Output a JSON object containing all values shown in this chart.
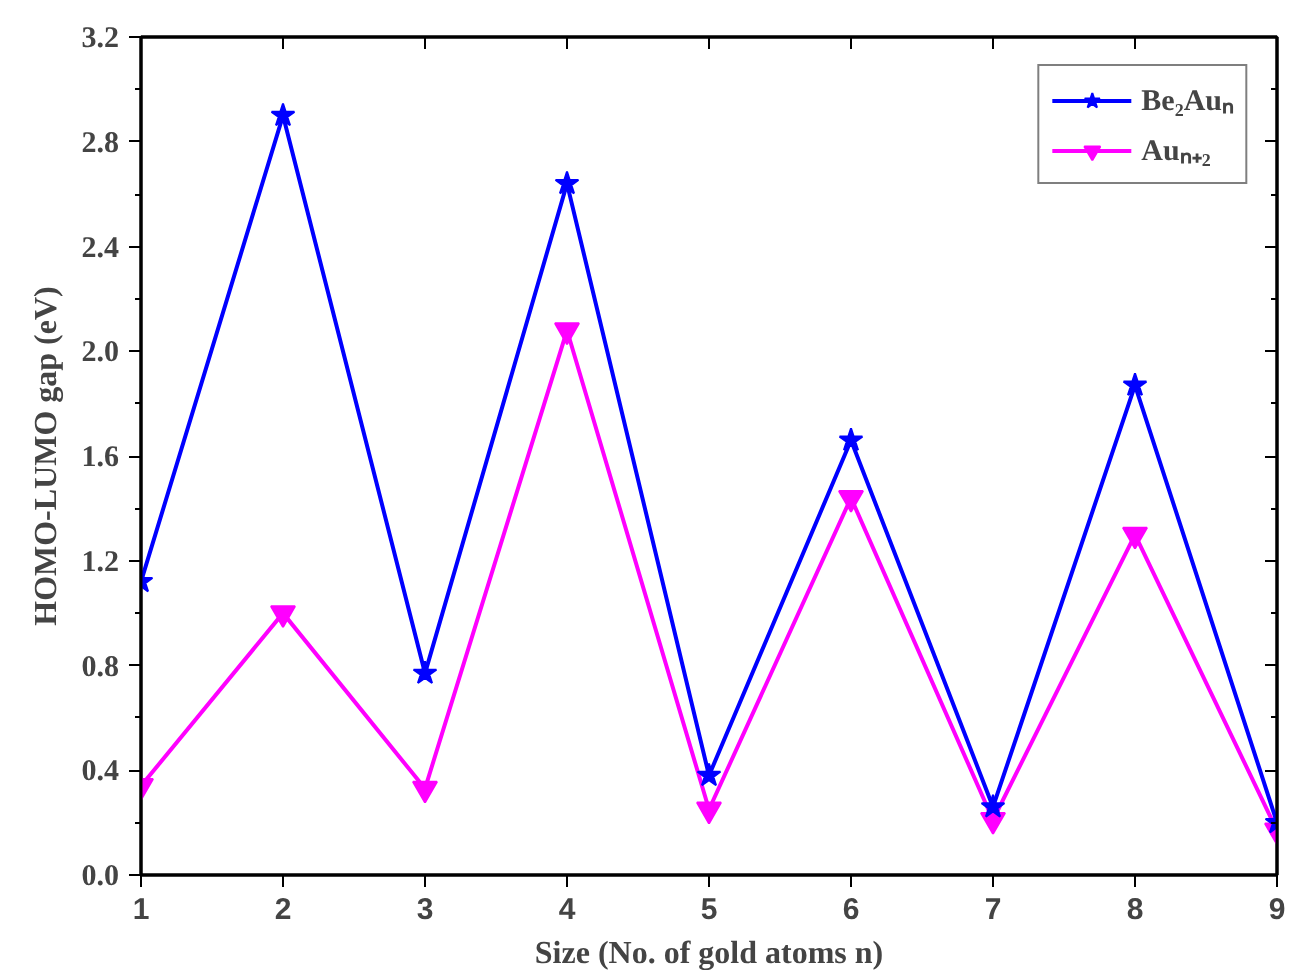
{
  "chart_data": {
    "type": "line",
    "xlabel": "Size (No. of gold atoms n)",
    "ylabel": "HOMO-LUMO gap (eV)",
    "x": [
      1,
      2,
      3,
      4,
      5,
      6,
      7,
      8,
      9
    ],
    "xlim": [
      1,
      9
    ],
    "xticks": [
      1,
      2,
      3,
      4,
      5,
      6,
      7,
      8,
      9
    ],
    "ylim": [
      0,
      3.2
    ],
    "yticks": [
      {
        "value": 0,
        "label": "0.0"
      },
      {
        "value": 0.4,
        "label": "0.4"
      },
      {
        "value": 0.8,
        "label": "0.8"
      },
      {
        "value": 1.2,
        "label": "1.2"
      },
      {
        "value": 1.6,
        "label": "1.6"
      },
      {
        "value": 2.0,
        "label": "2.0"
      },
      {
        "value": 2.4,
        "label": "2.4"
      },
      {
        "value": 2.8,
        "label": "2.8"
      },
      {
        "value": 3.2,
        "label": "3.2"
      }
    ],
    "series": [
      {
        "name": "Be₂Auₙ",
        "color": "#0000ff",
        "marker": "star",
        "values": [
          1.12,
          2.9,
          0.77,
          2.64,
          0.38,
          1.66,
          0.26,
          1.87,
          0.2
        ]
      },
      {
        "name": "Auₙ₊₂",
        "color": "#ff00ff",
        "marker": "triangle",
        "values": [
          0.34,
          1.0,
          0.33,
          2.08,
          0.25,
          1.44,
          0.21,
          1.3,
          0.17
        ]
      }
    ],
    "grid": false,
    "legend": "top right",
    "line_style": "solid"
  }
}
